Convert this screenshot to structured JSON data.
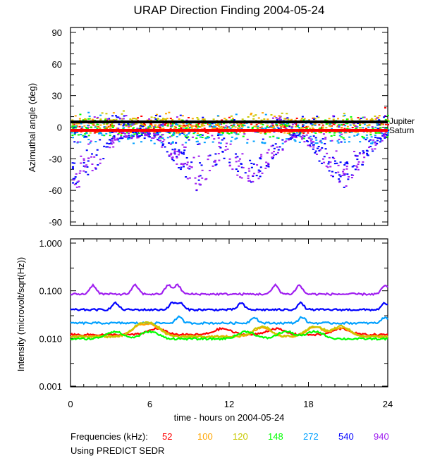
{
  "chart_data": [
    {
      "type": "scatter",
      "title": "URAP Direction Finding  2004-05-24",
      "xlabel": "",
      "ylabel": "Azimuthal angle (deg)",
      "xlim": [
        0,
        24
      ],
      "ylim": [
        -90,
        90
      ],
      "y_ticks": [
        "90",
        "60",
        "30",
        "0",
        "-30",
        "-60",
        "-90"
      ],
      "y_tick_values": [
        90,
        60,
        30,
        0,
        -30,
        -60,
        -90
      ],
      "reference_lines": [
        {
          "name": "Jupiter",
          "y": 5,
          "color": "#000000"
        },
        {
          "name": "Saturn",
          "y": -3,
          "color": "#ff0000"
        }
      ],
      "series": [
        {
          "name": "52",
          "color": "#ff0000",
          "clusters": [
            {
              "x": [
                0,
                24
              ],
              "y": [
                -5,
                10
              ]
            }
          ]
        },
        {
          "name": "100",
          "color": "#ffa500",
          "clusters": [
            {
              "x": [
                0,
                24
              ],
              "y": [
                -5,
                15
              ]
            }
          ]
        },
        {
          "name": "120",
          "color": "#c8c800",
          "clusters": [
            {
              "x": [
                0,
                24
              ],
              "y": [
                -5,
                15
              ]
            }
          ]
        },
        {
          "name": "148",
          "color": "#00ff00",
          "clusters": [
            {
              "x": [
                0,
                24
              ],
              "y": [
                -10,
                15
              ]
            }
          ]
        },
        {
          "name": "272",
          "color": "#00a0ff",
          "clusters": [
            {
              "x": [
                0,
                24
              ],
              "y": [
                -15,
                15
              ]
            }
          ]
        },
        {
          "name": "540",
          "color": "#0000ff",
          "envelope_minima_hours": [
            0.5,
            9.5,
            13.5,
            20.5
          ],
          "y_range": [
            -60,
            10
          ]
        },
        {
          "name": "940",
          "color": "#a020f0",
          "envelope_minima_hours": [
            0.5,
            9.5,
            13.5,
            20.5
          ],
          "y_range": [
            -65,
            10
          ]
        }
      ]
    },
    {
      "type": "line",
      "title": "",
      "xlabel": "time - hours on 2004-05-24",
      "ylabel": "Intensity (microvolt/sqrt(Hz))",
      "xlim": [
        0,
        24
      ],
      "ylim": [
        0.001,
        1.0
      ],
      "yscale": "log",
      "x_ticks": [
        "0",
        "6",
        "12",
        "18",
        "24"
      ],
      "x_tick_values": [
        0,
        6,
        12,
        18,
        24
      ],
      "y_ticks": [
        "1.000",
        "0.100",
        "0.010",
        "0.001"
      ],
      "y_tick_values": [
        1.0,
        0.1,
        0.01,
        0.001
      ],
      "series": [
        {
          "name": "940",
          "color": "#a020f0",
          "baseline": 0.085,
          "peaks_hours": [
            1.7,
            4.9,
            7.4,
            8.1,
            15.5,
            17.3,
            23.8
          ],
          "peak_value": 0.13
        },
        {
          "name": "540",
          "color": "#0000ff",
          "baseline": 0.04,
          "peaks_hours": [
            3.4,
            7.7,
            8.3,
            12.9,
            17.4,
            23.8
          ],
          "peak_value": 0.055
        },
        {
          "name": "272",
          "color": "#00a0ff",
          "baseline": 0.021,
          "peaks_hours": [
            8.2,
            13.9,
            17.5,
            23.8
          ],
          "peak_value": 0.028
        },
        {
          "name": "52",
          "color": "#ff0000",
          "baseline": 0.012,
          "bumps_hours": [
            6.5,
            11.5,
            15.5,
            20.5
          ],
          "bump_value": 0.016
        },
        {
          "name": "100",
          "color": "#ffa500",
          "baseline": 0.011,
          "bumps_hours": [
            5.2,
            6.3,
            14.5,
            18.5,
            20.5
          ],
          "bump_value": 0.017
        },
        {
          "name": "120",
          "color": "#c8c800",
          "baseline": 0.011,
          "bumps_hours": [
            5.2,
            6.3,
            14.5,
            18.5,
            20.5
          ],
          "bump_value": 0.018
        },
        {
          "name": "148",
          "color": "#00ff00",
          "baseline": 0.0098,
          "bumps_hours": [
            3.3,
            6.0,
            13.3,
            16.3,
            18.5
          ],
          "bump_value": 0.014
        }
      ]
    }
  ],
  "title": "URAP Direction Finding  2004-05-24",
  "top_panel": {
    "ylabel": "Azimuthal angle (deg)",
    "jupiter_label": "Jupiter",
    "saturn_label": "Saturn"
  },
  "bottom_panel": {
    "ylabel": "Intensity (microvolt/sqrt(Hz))",
    "xlabel": "time - hours on 2004-05-24"
  },
  "legend": {
    "prefix": "Frequencies (kHz):",
    "items": [
      {
        "label": "52",
        "color": "#ff0000"
      },
      {
        "label": "100",
        "color": "#ffa500"
      },
      {
        "label": "120",
        "color": "#c8c800"
      },
      {
        "label": "148",
        "color": "#00ff00"
      },
      {
        "label": "272",
        "color": "#00a0ff"
      },
      {
        "label": "540",
        "color": "#0000ff"
      },
      {
        "label": "940",
        "color": "#a020f0"
      }
    ]
  },
  "note": "Using PREDICT SEDR"
}
